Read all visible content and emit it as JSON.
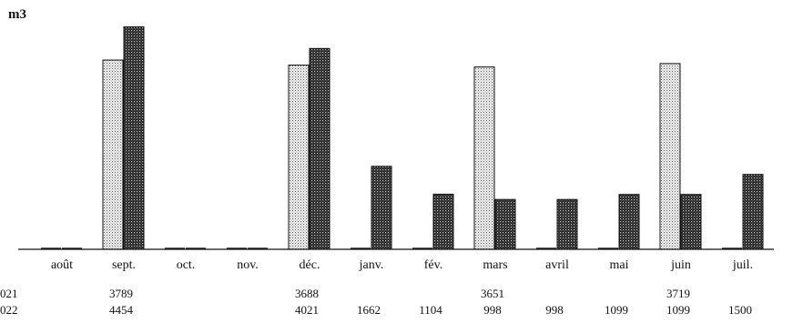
{
  "chart_data": {
    "type": "bar",
    "ylabel": "m3",
    "categories": [
      "août",
      "sept.",
      "oct.",
      "nov.",
      "déc.",
      "janv.",
      "fév.",
      "mars",
      "avril",
      "mai",
      "juin",
      "juil."
    ],
    "series": [
      {
        "name": "021",
        "values": [
          0,
          3789,
          0,
          0,
          3688,
          0,
          0,
          3651,
          0,
          0,
          3719,
          0
        ]
      },
      {
        "name": "022",
        "values": [
          0,
          4454,
          0,
          0,
          4021,
          1662,
          1104,
          998,
          998,
          1099,
          1099,
          1500
        ]
      }
    ],
    "table_rows": [
      {
        "label": "021",
        "cells": [
          "",
          "3789",
          "",
          "",
          "3688",
          "",
          "",
          "3651",
          "",
          "",
          "3719",
          ""
        ]
      },
      {
        "label": "022",
        "cells": [
          "",
          "4454",
          "",
          "",
          "4021",
          "1662",
          "1104",
          "998",
          "998",
          "1099",
          "1099",
          "1500"
        ]
      }
    ],
    "ylim": [
      0,
      4500
    ],
    "grid": false,
    "legend": "none"
  }
}
